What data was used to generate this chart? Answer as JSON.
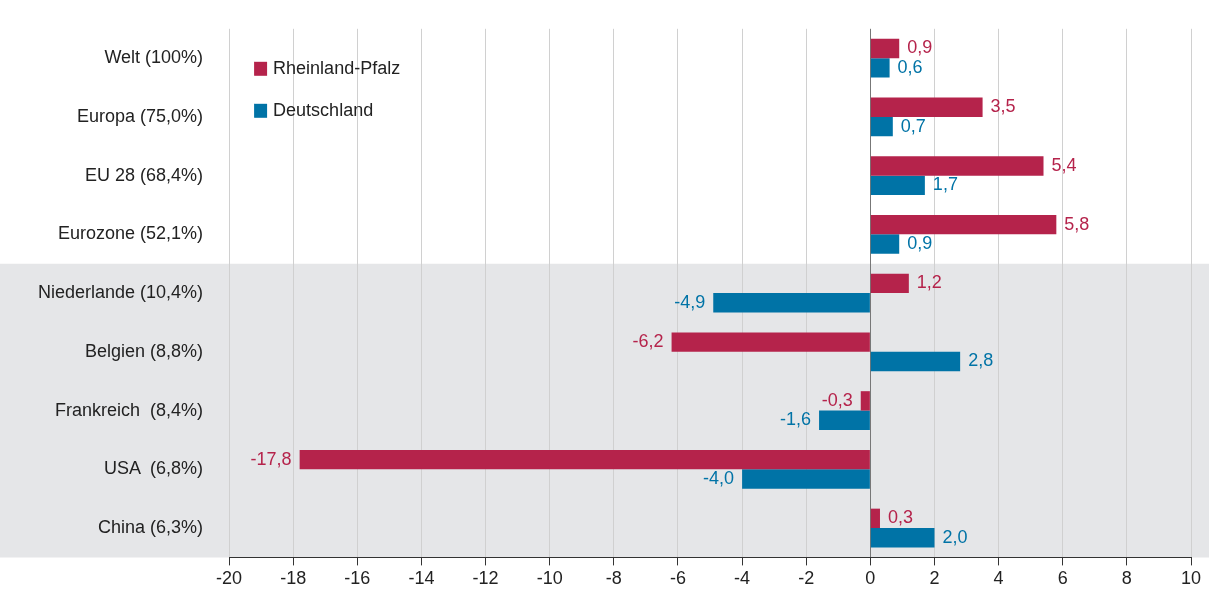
{
  "chart_data": {
    "type": "bar",
    "orientation": "horizontal",
    "categories": [
      "Welt (100%)",
      "Europa (75,0%)",
      "EU 28 (68,4%)",
      "Eurozone (52,1%)",
      "Niederlande (10,4%)",
      "Belgien (8,8%)",
      "Frankreich  (8,4%)",
      "USA  (6,8%)",
      "China (6,3%)"
    ],
    "series": [
      {
        "name": "Rheinland-Pfalz",
        "color": "#b5234b",
        "values": [
          0.9,
          3.5,
          5.4,
          5.8,
          1.2,
          -6.2,
          -0.3,
          -17.8,
          0.3
        ],
        "value_labels": [
          "0,9",
          "3,5",
          "5,4",
          "5,8",
          "1,2",
          "-6,2",
          "-0,3",
          "-17,8",
          "0,3"
        ]
      },
      {
        "name": "Deutschland",
        "color": "#0073a6",
        "values": [
          0.6,
          0.7,
          1.7,
          0.9,
          -4.9,
          2.8,
          -1.6,
          -4.0,
          2.0
        ],
        "value_labels": [
          "0,6",
          "0,7",
          "1,7",
          "0,9",
          "-4,9",
          "2,8",
          "-1,6",
          "-4,0",
          "2,0"
        ]
      }
    ],
    "xlim": [
      -20,
      10
    ],
    "xticks": [
      -20,
      -18,
      -16,
      -14,
      -12,
      -10,
      -8,
      -6,
      -4,
      -2,
      0,
      2,
      4,
      6,
      8,
      10
    ],
    "grid": "x",
    "legend": "top left",
    "bands": [
      {
        "axis": "y",
        "from": "Niederlande (10,4%)",
        "to": "China (6,3%)",
        "color": "#e5e6e8"
      }
    ]
  }
}
